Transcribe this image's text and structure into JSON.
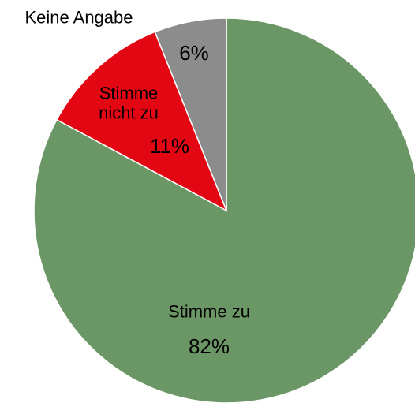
{
  "chart_data": {
    "type": "pie",
    "categories": [
      "Stimme zu",
      "Stimme nicht zu",
      "Keine Angabe"
    ],
    "values": [
      82,
      11,
      6
    ],
    "value_labels": [
      "82%",
      "11%",
      "6%"
    ],
    "colors": [
      "#6b9665",
      "#e30613",
      "#8c8c8c"
    ]
  }
}
